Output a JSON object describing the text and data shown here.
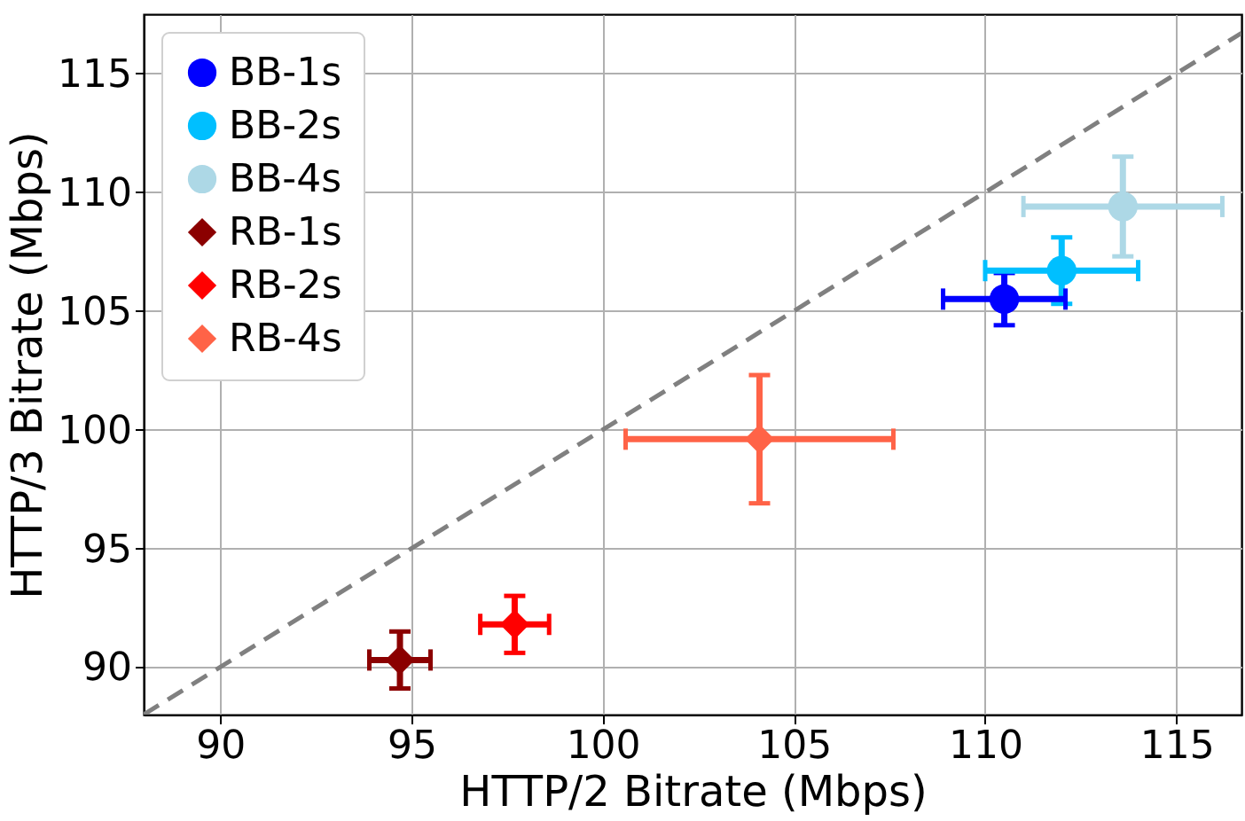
{
  "chart_data": {
    "type": "scatter",
    "xlabel": "HTTP/2 Bitrate (Mbps)",
    "ylabel": "HTTP/3 Bitrate (Mbps)",
    "xlim": [
      88,
      116.7
    ],
    "ylim": [
      88,
      117.5
    ],
    "xticks": [
      90,
      95,
      100,
      105,
      110,
      115
    ],
    "yticks": [
      90,
      95,
      100,
      105,
      110,
      115
    ],
    "grid": true,
    "legend": "top left",
    "series": [
      {
        "type": "line",
        "color": "#808080",
        "line_style": "dashed",
        "x": [
          88,
          116.7
        ],
        "values": [
          88,
          116.7
        ]
      },
      {
        "name": "BB-1s",
        "color": "#0000ff",
        "marker": "circle",
        "x": [
          110.5
        ],
        "values": [
          105.5
        ],
        "errors": [
          1.1
        ],
        "xerrors": [
          1.6
        ]
      },
      {
        "name": "BB-2s",
        "color": "#00bfff",
        "marker": "circle",
        "x": [
          112
        ],
        "values": [
          106.7
        ],
        "errors": [
          1.4
        ],
        "xerrors": [
          2
        ]
      },
      {
        "name": "BB-4s",
        "color": "#add8e6",
        "marker": "circle",
        "x": [
          113.6
        ],
        "values": [
          109.4
        ],
        "errors": [
          2.1
        ],
        "xerrors": [
          2.6
        ]
      },
      {
        "name": "RB-1s",
        "color": "#8b0000",
        "marker": "diamond",
        "x": [
          94.7
        ],
        "values": [
          90.3
        ],
        "errors": [
          1.2
        ],
        "xerrors": [
          0.8
        ]
      },
      {
        "name": "RB-2s",
        "color": "#ff0000",
        "marker": "diamond",
        "x": [
          97.7
        ],
        "values": [
          91.8
        ],
        "errors": [
          1.2
        ],
        "xerrors": [
          0.9
        ]
      },
      {
        "name": "RB-4s",
        "color": "#ff6347",
        "marker": "diamond",
        "x": [
          104.1
        ],
        "values": [
          99.6
        ],
        "errors": [
          2.7
        ],
        "xerrors": [
          3.5
        ]
      }
    ]
  }
}
